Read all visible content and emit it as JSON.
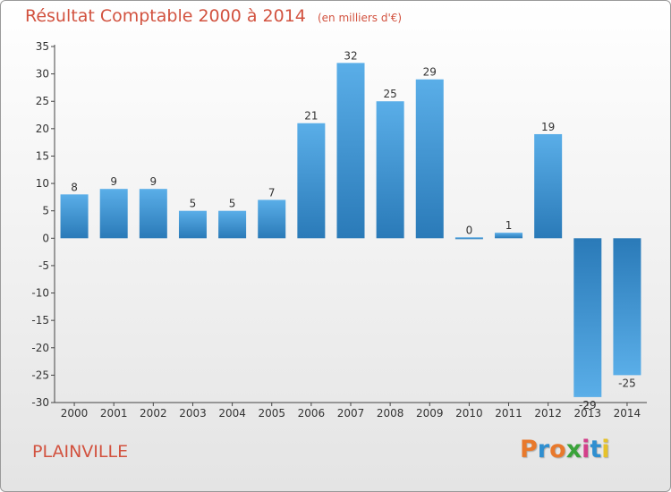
{
  "header": {
    "title": "Résultat Comptable 2000 à 2014",
    "unit": "(en milliers d'€)"
  },
  "footer": {
    "commune": "PLAINVILLE",
    "logo_text": "Proxiti",
    "logo_colors": [
      "#e8792c",
      "#2f8fd0",
      "#e8792c",
      "#3aa33a",
      "#d33f8a",
      "#2f8fd0",
      "#e6c22a"
    ]
  },
  "colors": {
    "title": "#d2523f",
    "bar_light": "#5aaee8",
    "bar_dark": "#2a7ab8",
    "axis": "#444444"
  },
  "chart_data": {
    "type": "bar",
    "title": "Résultat Comptable 2000 à 2014",
    "subtitle": "(en milliers d'€)",
    "xlabel": "",
    "ylabel": "",
    "categories": [
      "2000",
      "2001",
      "2002",
      "2003",
      "2004",
      "2005",
      "2006",
      "2007",
      "2008",
      "2009",
      "2010",
      "2011",
      "2012",
      "2013",
      "2014"
    ],
    "values": [
      8,
      9,
      9,
      5,
      5,
      7,
      21,
      32,
      25,
      29,
      0,
      1,
      19,
      -29,
      -25
    ],
    "ylim": [
      -30,
      35
    ],
    "yticks": [
      35,
      30,
      25,
      20,
      15,
      10,
      5,
      0,
      -5,
      -10,
      -15,
      -20,
      -25,
      -30
    ],
    "grid": false,
    "legend": "none"
  }
}
